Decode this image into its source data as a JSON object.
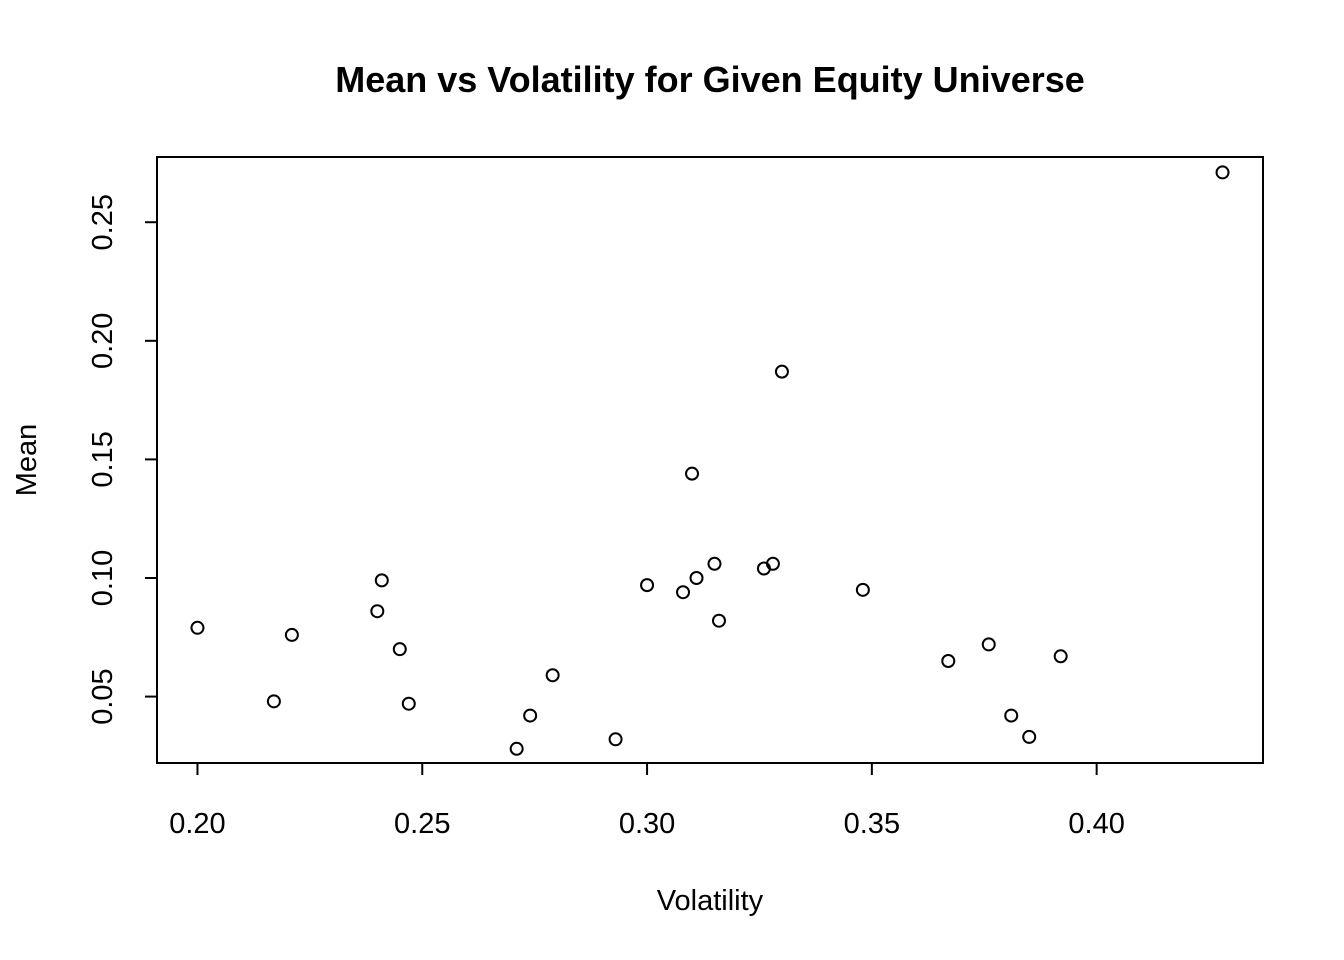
{
  "chart_data": {
    "type": "scatter",
    "title": "Mean vs Volatility for Given Equity Universe",
    "xlabel": "Volatility",
    "ylabel": "Mean",
    "xlim": [
      0.191,
      0.437
    ],
    "ylim": [
      0.022,
      0.2775
    ],
    "x_ticks": [
      0.2,
      0.25,
      0.3,
      0.35,
      0.4
    ],
    "x_tick_labels": [
      "0.20",
      "0.25",
      "0.30",
      "0.35",
      "0.40"
    ],
    "y_ticks": [
      0.05,
      0.1,
      0.15,
      0.2,
      0.25
    ],
    "y_tick_labels": [
      "0.05",
      "0.10",
      "0.15",
      "0.20",
      "0.25"
    ],
    "grid": false,
    "legend": "none",
    "marker": "open-circle",
    "points": [
      {
        "x": 0.2,
        "y": 0.079
      },
      {
        "x": 0.217,
        "y": 0.048
      },
      {
        "x": 0.221,
        "y": 0.076
      },
      {
        "x": 0.24,
        "y": 0.086
      },
      {
        "x": 0.241,
        "y": 0.099
      },
      {
        "x": 0.245,
        "y": 0.07
      },
      {
        "x": 0.247,
        "y": 0.047
      },
      {
        "x": 0.271,
        "y": 0.028
      },
      {
        "x": 0.274,
        "y": 0.042
      },
      {
        "x": 0.279,
        "y": 0.059
      },
      {
        "x": 0.293,
        "y": 0.032
      },
      {
        "x": 0.3,
        "y": 0.097
      },
      {
        "x": 0.308,
        "y": 0.094
      },
      {
        "x": 0.31,
        "y": 0.144
      },
      {
        "x": 0.311,
        "y": 0.1
      },
      {
        "x": 0.315,
        "y": 0.106
      },
      {
        "x": 0.316,
        "y": 0.082
      },
      {
        "x": 0.326,
        "y": 0.104
      },
      {
        "x": 0.328,
        "y": 0.106
      },
      {
        "x": 0.33,
        "y": 0.187
      },
      {
        "x": 0.348,
        "y": 0.095
      },
      {
        "x": 0.367,
        "y": 0.065
      },
      {
        "x": 0.376,
        "y": 0.072
      },
      {
        "x": 0.381,
        "y": 0.042
      },
      {
        "x": 0.385,
        "y": 0.033
      },
      {
        "x": 0.392,
        "y": 0.067
      },
      {
        "x": 0.428,
        "y": 0.271
      }
    ]
  }
}
